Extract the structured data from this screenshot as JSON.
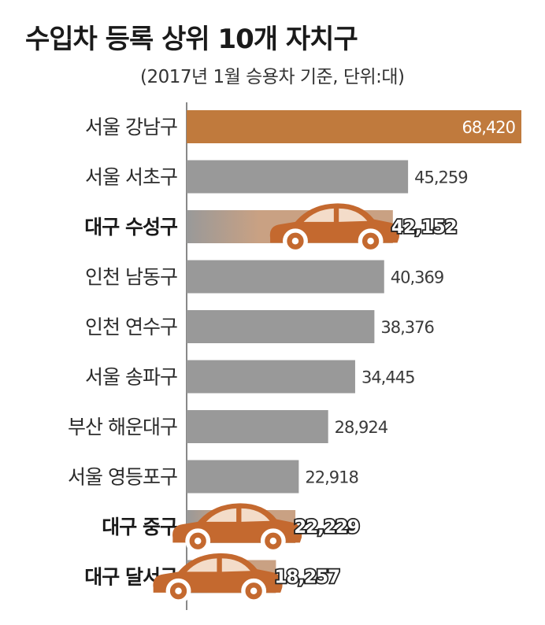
{
  "chart_data": {
    "type": "bar",
    "orientation": "horizontal",
    "title": "수입차 등록 상위 10개 자치구",
    "subtitle": "(2017년 1월 승용차 기준, 단위:대)",
    "categories": [
      "서울 강남구",
      "서울 서초구",
      "대구 수성구",
      "인천 남동구",
      "인천 연수구",
      "서울 송파구",
      "부산 해운대구",
      "서울 영등포구",
      "대구 중구",
      "대구 달서구"
    ],
    "values": [
      68420,
      45259,
      42152,
      40369,
      38376,
      34445,
      28924,
      22918,
      22229,
      18257
    ],
    "value_labels": [
      "68,420",
      "45,259",
      "42,152",
      "40,369",
      "38,376",
      "34,445",
      "28,924",
      "22,918",
      "22,229",
      "18,257"
    ],
    "highlighted": [
      "서울 강남구",
      "대구 수성구",
      "대구 중구",
      "대구 달서구"
    ],
    "car_icons": [
      "대구 수성구",
      "대구 중구",
      "대구 달서구"
    ],
    "colors": {
      "bar": "#999999",
      "top_bar": "#c07a3d",
      "car": "#c4692f",
      "axis": "#888888"
    },
    "xlabel": "",
    "ylabel": "",
    "grid": false
  }
}
